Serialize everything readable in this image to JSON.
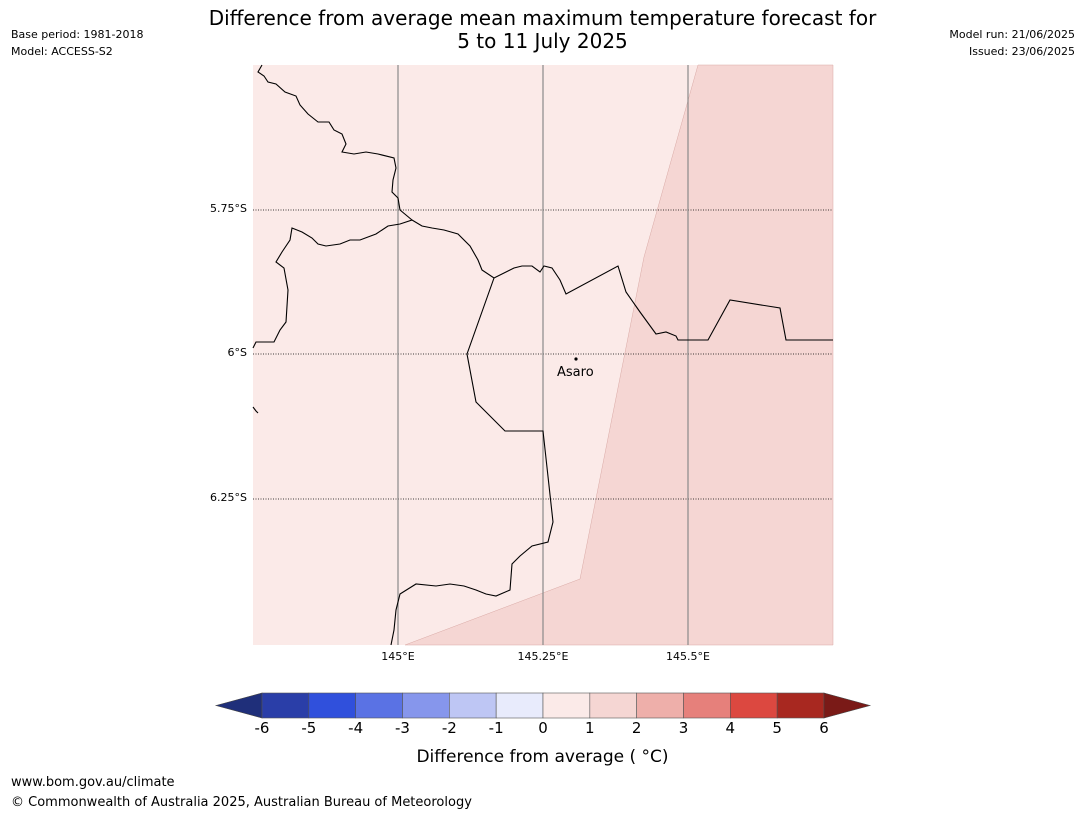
{
  "title_line1": "Difference from average mean maximum temperature forecast for",
  "title_line2": "5 to 11 July 2025",
  "base_period": "Base period: 1981-2018",
  "model": "Model: ACCESS-S2",
  "model_run": "Model run: 21/06/2025",
  "issued": "Issued: 23/06/2025",
  "map": {
    "lat_labels": [
      "5.75°S",
      "6°S",
      "6.25°S"
    ],
    "lon_labels": [
      "145°E",
      "145.25°E",
      "145.5°E"
    ],
    "place": "Asaro",
    "region_colors": {
      "light": "#fbeae8",
      "medium": "#f5d6d3"
    }
  },
  "colorbar": {
    "ticks": [
      "-6",
      "-5",
      "-4",
      "-3",
      "-2",
      "-1",
      "0",
      "1",
      "2",
      "3",
      "4",
      "5",
      "6"
    ],
    "low_extend_color": "#1f2f7a",
    "high_extend_color": "#7a1a17",
    "colors": [
      "#2a3ea8",
      "#3050dc",
      "#5a72e4",
      "#8696ec",
      "#bec6f4",
      "#e8ebfc",
      "#fbeae8",
      "#f5d6d3",
      "#eeafaa",
      "#e6807b",
      "#dc4840",
      "#a82820"
    ],
    "label": "Difference from average ( °C)"
  },
  "footer": {
    "url": "www.bom.gov.au/climate",
    "copyright": "© Commonwealth of Australia 2025, Australian Bureau of Meteorology"
  }
}
